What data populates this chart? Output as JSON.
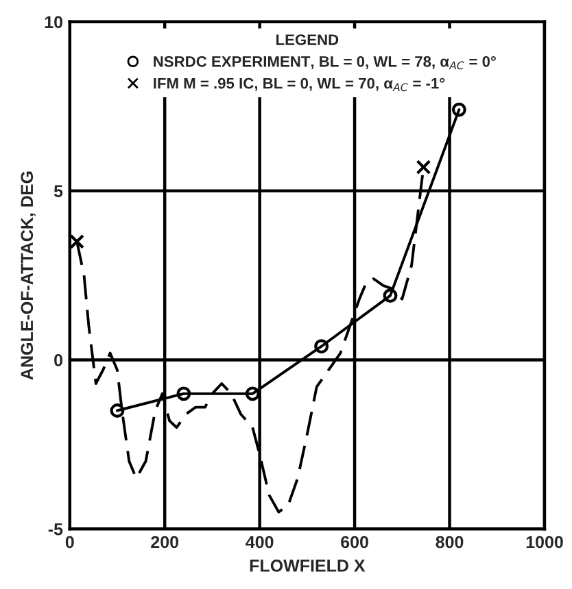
{
  "chart_data": {
    "type": "line",
    "xlabel": "FLOWFIELD X",
    "ylabel": "ANGLE-OF-ATTACK, DEG",
    "legend_title": "LEGEND",
    "xlim": [
      0,
      1000
    ],
    "ylim": [
      -5,
      10
    ],
    "xticks": [
      0,
      200,
      400,
      600,
      800,
      1000
    ],
    "yticks": [
      -5,
      0,
      5,
      10
    ],
    "grid": true,
    "legend": "top",
    "series": [
      {
        "name": "NSRDC EXPERIMENT, BL = 0, WL = 78, α$_{AC}$ = 0°",
        "color": "#000000",
        "marker": "circle",
        "line_style": "solid",
        "x": [
          100,
          240,
          385,
          530,
          675,
          820
        ],
        "values": [
          -1.5,
          -1.0,
          -1.0,
          0.4,
          1.9,
          7.4
        ]
      },
      {
        "color": "#000000",
        "marker": "none",
        "line_style": "dashed",
        "x": [
          15,
          30,
          40,
          55,
          70,
          85,
          100,
          110,
          125,
          140,
          160,
          180,
          195,
          210,
          225,
          245,
          265,
          285,
          300,
          320,
          340,
          360,
          385,
          400,
          420,
          440,
          460,
          480,
          500,
          520,
          545,
          570,
          590,
          610,
          625,
          640,
          660,
          680,
          700,
          720,
          745
        ],
        "values": [
          3.5,
          2.5,
          1.0,
          -0.7,
          -0.3,
          0.2,
          -0.3,
          -1.5,
          -3.0,
          -3.5,
          -3.0,
          -1.5,
          -1.0,
          -1.8,
          -2.0,
          -1.6,
          -1.4,
          -1.4,
          -1.0,
          -0.7,
          -1.0,
          -1.6,
          -2.0,
          -2.8,
          -4.0,
          -4.5,
          -4.3,
          -3.5,
          -2.2,
          -0.8,
          -0.3,
          0.2,
          1.0,
          1.8,
          2.3,
          2.4,
          2.2,
          2.1,
          1.8,
          2.8,
          5.7
        ]
      },
      {
        "name": "IFM M = .95 IC, BL = 0, WL = 70, α$_{AC}$ = -1°",
        "type": "scatter",
        "color": "#000000",
        "marker": "cross",
        "x": [
          15,
          745
        ],
        "values": [
          3.5,
          5.7
        ]
      }
    ]
  }
}
